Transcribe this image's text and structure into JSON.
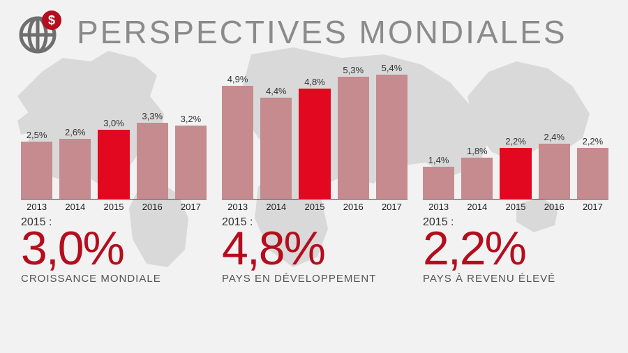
{
  "colors": {
    "page_bg": "#f2f2f2",
    "map_fill": "#d9d9d9",
    "title": "#8b8b8b",
    "axis": "#444444",
    "text": "#333333",
    "caption": "#555555",
    "accent": "#b40e1e",
    "bar_default": "#c58b8e",
    "bar_highlight": "#e1081f"
  },
  "header": {
    "title": "PERSPECTIVES MONDIALES",
    "title_fontsize": 46,
    "title_letter_spacing": 3
  },
  "layout": {
    "chart_area_height": 200,
    "value_scale_max": 5.4,
    "bar_gap": 10,
    "highlight_year": "2015"
  },
  "charts": [
    {
      "id": "world",
      "bars": [
        {
          "year": "2013",
          "value": 2.5,
          "label": "2,5%"
        },
        {
          "year": "2014",
          "value": 2.6,
          "label": "2,6%"
        },
        {
          "year": "2015",
          "value": 3.0,
          "label": "3,0%"
        },
        {
          "year": "2016",
          "value": 3.3,
          "label": "3,3%"
        },
        {
          "year": "2017",
          "value": 3.2,
          "label": "3,2%"
        }
      ],
      "year_label": "2015 :",
      "big_number": "3,0%",
      "caption": "CROISSANCE MONDIALE"
    },
    {
      "id": "developing",
      "bars": [
        {
          "year": "2013",
          "value": 4.9,
          "label": "4,9%"
        },
        {
          "year": "2014",
          "value": 4.4,
          "label": "4,4%"
        },
        {
          "year": "2015",
          "value": 4.8,
          "label": "4,8%"
        },
        {
          "year": "2016",
          "value": 5.3,
          "label": "5,3%"
        },
        {
          "year": "2017",
          "value": 5.4,
          "label": "5,4%"
        }
      ],
      "year_label": "2015 :",
      "big_number": "4,8%",
      "caption": "PAYS EN DÉVELOPPEMENT"
    },
    {
      "id": "highincome",
      "bars": [
        {
          "year": "2013",
          "value": 1.4,
          "label": "1,4%"
        },
        {
          "year": "2014",
          "value": 1.8,
          "label": "1,8%"
        },
        {
          "year": "2015",
          "value": 2.2,
          "label": "2,2%"
        },
        {
          "year": "2016",
          "value": 2.4,
          "label": "2,4%"
        },
        {
          "year": "2017",
          "value": 2.2,
          "label": "2,2%"
        }
      ],
      "year_label": "2015 :",
      "big_number": "2,2%",
      "caption": "PAYS À REVENU ÉLEVÉ"
    }
  ]
}
